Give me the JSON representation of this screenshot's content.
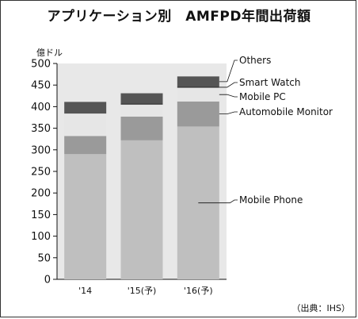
{
  "chart_data": {
    "type": "bar",
    "stacked": true,
    "title": "アプリケーション別　AMFPD年間出荷額",
    "ylabel": "億ドル",
    "ylim": [
      0,
      500
    ],
    "yticks": [
      0,
      50,
      100,
      150,
      200,
      250,
      300,
      350,
      400,
      450,
      500
    ],
    "categories": [
      "'14",
      "'15(予)",
      "'16(予)"
    ],
    "series": [
      {
        "name": "Mobile Phone",
        "color": "#bfbfbf",
        "values": [
          290,
          322,
          354
        ]
      },
      {
        "name": "Automobile Monitor",
        "color": "#9a9a9a",
        "values": [
          42,
          55,
          58
        ]
      },
      {
        "name": "Mobile PC",
        "color": "#e6e6e6",
        "values": [
          52,
          28,
          32
        ]
      },
      {
        "name": "Smart Watch",
        "color": "#111111",
        "values": [
          0,
          2,
          2
        ]
      },
      {
        "name": "Others",
        "color": "#555555",
        "values": [
          27,
          24,
          24
        ]
      }
    ],
    "legend_position": "right",
    "source": "（出典：IHS）"
  }
}
